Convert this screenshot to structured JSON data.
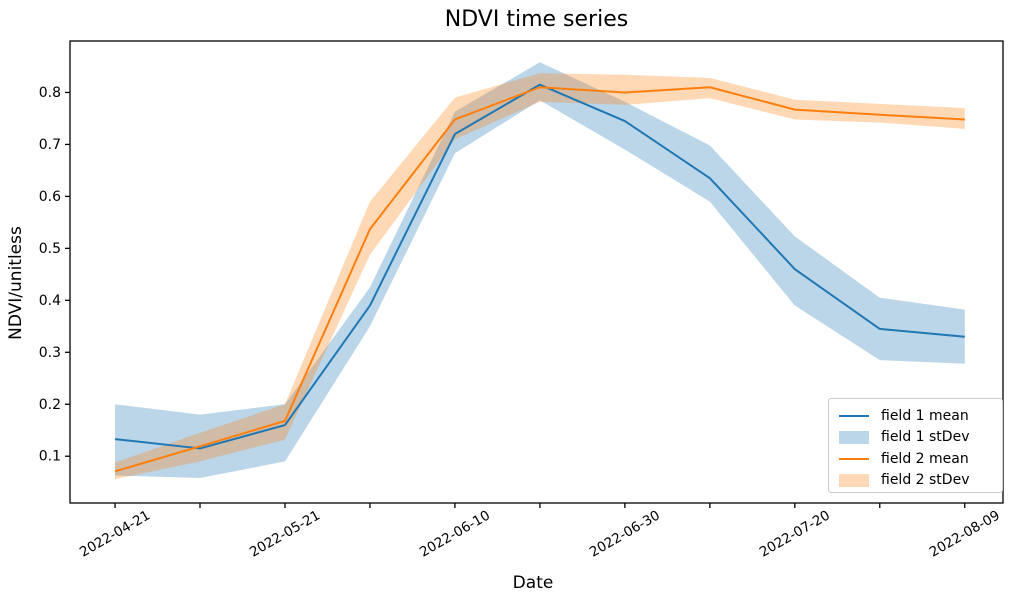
{
  "chart_data": {
    "type": "line",
    "title": "NDVI time series",
    "xlabel": "Date",
    "ylabel": "NDVI/unitless",
    "xlim": [
      -0.53,
      10.45
    ],
    "ylim": [
      0.01,
      0.899
    ],
    "grid": false,
    "background": "#ffffff",
    "axis_color": "#000000",
    "y_ticks": [
      0.1,
      0.2,
      0.3,
      0.4,
      0.5,
      0.6,
      0.7,
      0.8
    ],
    "x_ticks": [
      {
        "index": 0,
        "label": "2022-04-21"
      },
      {
        "index": 1,
        "label": ""
      },
      {
        "index": 2,
        "label": "2022-05-21"
      },
      {
        "index": 3,
        "label": ""
      },
      {
        "index": 4,
        "label": "2022-06-10"
      },
      {
        "index": 5,
        "label": ""
      },
      {
        "index": 6,
        "label": "2022-06-30"
      },
      {
        "index": 7,
        "label": ""
      },
      {
        "index": 8,
        "label": "2022-07-20"
      },
      {
        "index": 9,
        "label": ""
      },
      {
        "index": 10,
        "label": "2022-08-09"
      }
    ],
    "series": [
      {
        "name": "field 1 mean",
        "kind": "line",
        "color": "#1f77b4",
        "values": [
          0.133,
          0.115,
          0.16,
          0.39,
          0.72,
          0.815,
          0.745,
          0.635,
          0.46,
          0.345,
          0.33
        ]
      },
      {
        "name": "field 1 stDev",
        "kind": "band",
        "color": "#1f77b4",
        "opacity": 0.3,
        "lower": [
          0.063,
          0.058,
          0.09,
          0.35,
          0.683,
          0.785,
          0.69,
          0.59,
          0.39,
          0.285,
          0.278
        ],
        "upper": [
          0.2,
          0.18,
          0.2,
          0.425,
          0.763,
          0.858,
          0.782,
          0.698,
          0.523,
          0.405,
          0.382
        ]
      },
      {
        "name": "field 2 mean",
        "kind": "line",
        "color": "#ff7f0e",
        "values": [
          0.071,
          0.119,
          0.168,
          0.537,
          0.748,
          0.81,
          0.8,
          0.81,
          0.767,
          0.757,
          0.748
        ]
      },
      {
        "name": "field 2 stDev",
        "kind": "band",
        "color": "#ff7f0e",
        "opacity": 0.3,
        "lower": [
          0.056,
          0.09,
          0.132,
          0.488,
          0.71,
          0.782,
          0.776,
          0.789,
          0.748,
          0.742,
          0.73
        ],
        "upper": [
          0.088,
          0.145,
          0.2,
          0.59,
          0.79,
          0.837,
          0.834,
          0.828,
          0.786,
          0.778,
          0.77
        ]
      }
    ],
    "legend": {
      "position": "lower right",
      "entries": [
        {
          "label": "field 1 mean",
          "swatch": "line",
          "color": "#1f77b4"
        },
        {
          "label": "field 1 stDev",
          "swatch": "patch",
          "color": "#bcd6e9"
        },
        {
          "label": "field 2 mean",
          "swatch": "line",
          "color": "#ff7f0e"
        },
        {
          "label": "field 2 stDev",
          "swatch": "patch",
          "color": "#ffd9b7"
        }
      ]
    }
  }
}
